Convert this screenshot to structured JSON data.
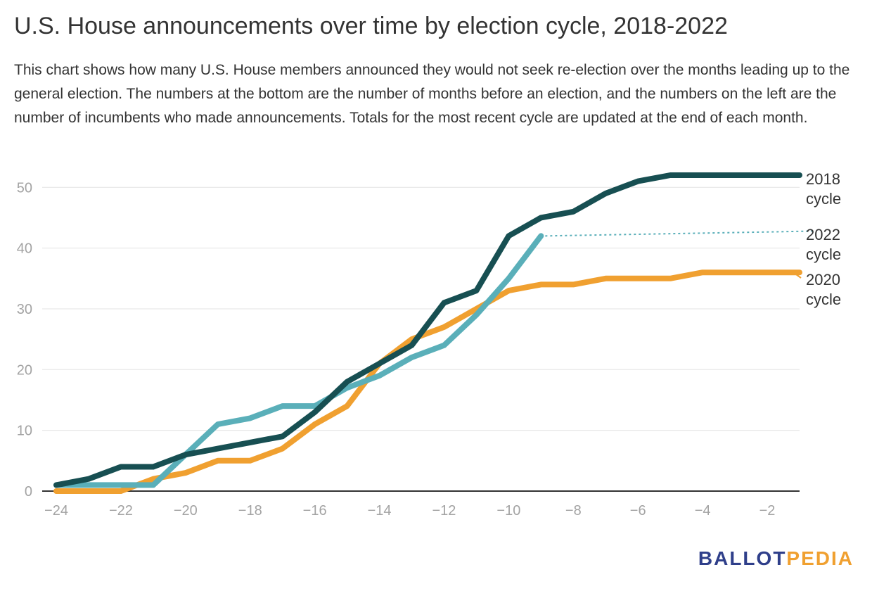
{
  "title": "U.S. House announcements over time by election cycle, 2018-2022",
  "subtitle": "This chart shows how many U.S. House members announced they would not seek re-election over the months leading up to the general election. The numbers at the bottom are the number of months before an election, and the numbers on the left are the number of incumbents who made announcements. Totals for the most recent cycle are updated at the end of each month.",
  "logo": {
    "part1": "BALLOT",
    "part2": "PEDIA"
  },
  "chart_data": {
    "type": "line",
    "title": "U.S. House announcements over time by election cycle, 2018-2022",
    "xlabel": "",
    "ylabel": "",
    "xlim": [
      -24,
      -1
    ],
    "ylim": [
      0,
      52
    ],
    "xticks": [
      -24,
      -22,
      -20,
      -18,
      -16,
      -14,
      -12,
      -10,
      -8,
      -6,
      -4,
      -2
    ],
    "yticks": [
      0,
      10,
      20,
      30,
      40,
      50
    ],
    "grid": {
      "horizontal": true,
      "vertical": false
    },
    "legend": "direct labels at right end of lines",
    "series": [
      {
        "id": "s2020",
        "label_lines": [
          "2020",
          "cycle"
        ],
        "color": "#f0a030",
        "x": [
          -24,
          -23,
          -22,
          -21,
          -20,
          -19,
          -18,
          -17,
          -16,
          -15,
          -14,
          -13,
          -12,
          -11,
          -10,
          -9,
          -8,
          -7,
          -6,
          -5,
          -4,
          -3,
          -2,
          -1
        ],
        "values": [
          0,
          0,
          0,
          2,
          3,
          5,
          5,
          7,
          11,
          14,
          21,
          25,
          27,
          30,
          33,
          34,
          34,
          35,
          35,
          35,
          36,
          36,
          36,
          36
        ]
      },
      {
        "id": "s2022",
        "label_lines": [
          "2022",
          "cycle"
        ],
        "color": "#5aafb9",
        "x": [
          -24,
          -23,
          -22,
          -21,
          -20,
          -19,
          -18,
          -17,
          -16,
          -15,
          -14,
          -13,
          -12,
          -11,
          -10,
          -9
        ],
        "values": [
          1,
          1,
          1,
          1,
          6,
          11,
          12,
          14,
          14,
          17,
          19,
          22,
          24,
          29,
          35,
          42
        ],
        "projection_end": {
          "x": -0.5,
          "value": 42.8
        }
      },
      {
        "id": "s2018",
        "label_lines": [
          "2018",
          "cycle"
        ],
        "color": "#174f52",
        "x": [
          -24,
          -23,
          -22,
          -21,
          -20,
          -19,
          -18,
          -17,
          -16,
          -15,
          -14,
          -13,
          -12,
          -11,
          -10,
          -9,
          -8,
          -7,
          -6,
          -5,
          -4,
          -3,
          -2,
          -1
        ],
        "values": [
          1,
          2,
          4,
          4,
          6,
          7,
          8,
          9,
          13,
          18,
          21,
          24,
          31,
          33,
          42,
          45,
          46,
          49,
          51,
          52,
          52,
          52,
          52,
          52
        ]
      }
    ]
  }
}
